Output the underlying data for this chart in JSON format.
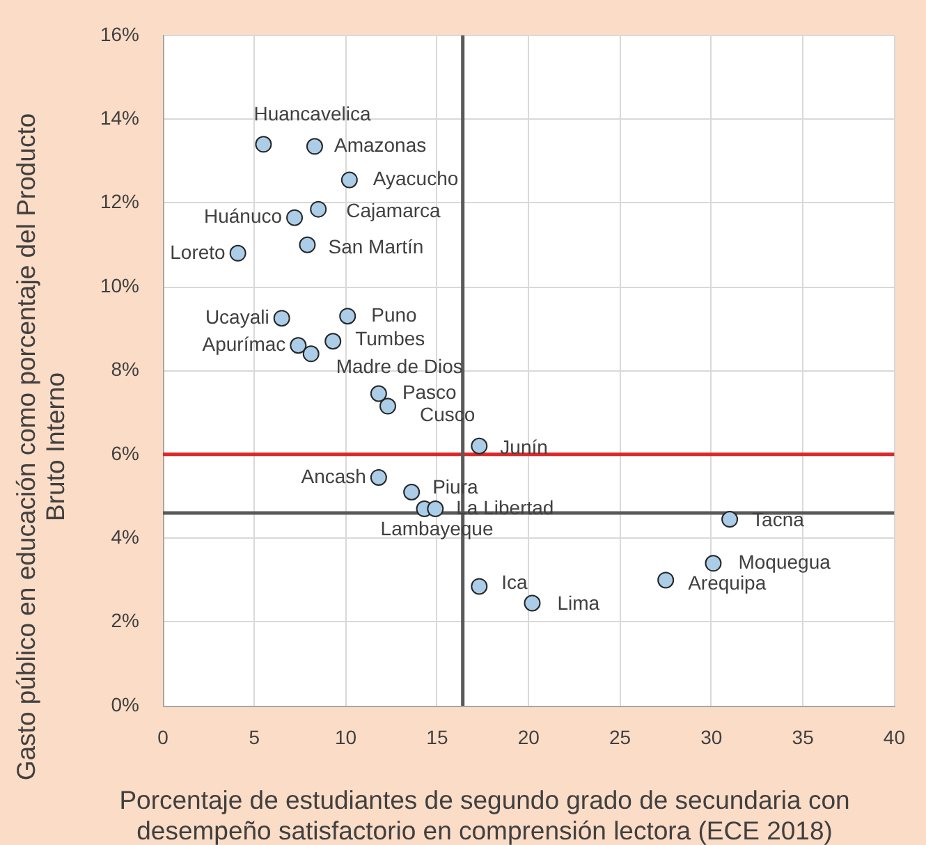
{
  "chart_data": {
    "type": "scatter",
    "xlabel": "Porcentaje de estudiantes de segundo grado de secundaria con desempeño satisfactorio en comprensión lectora (ECE 2018)",
    "ylabel": "Gasto público en educación como porcentaje del Producto Bruto Interno",
    "x": [
      5.5,
      8.3,
      10.2,
      7.2,
      8.5,
      4.1,
      7.9,
      6.5,
      10.1,
      9.3,
      7.4,
      8.1,
      11.8,
      12.3,
      17.3,
      11.8,
      13.6,
      14.3,
      14.9,
      31.0,
      30.1,
      27.5,
      17.3,
      20.2
    ],
    "values": [
      13.4,
      13.35,
      12.55,
      11.65,
      11.85,
      10.8,
      11.0,
      9.25,
      9.3,
      8.7,
      8.6,
      8.4,
      7.45,
      7.15,
      6.2,
      5.45,
      5.1,
      4.7,
      4.7,
      4.45,
      3.4,
      3.0,
      2.85,
      2.45
    ],
    "color": "#abcde8",
    "marker": "circle",
    "xlim": [
      0,
      40
    ],
    "xticks": [
      0,
      5,
      10,
      15,
      20,
      25,
      30,
      35,
      40
    ],
    "ylim": [
      0,
      16
    ],
    "yticks": [
      {
        "value": 0,
        "label": "0%"
      },
      {
        "value": 2,
        "label": "2%"
      },
      {
        "value": 4,
        "label": "4%"
      },
      {
        "value": 6,
        "label": "6%"
      },
      {
        "value": 8,
        "label": "8%"
      },
      {
        "value": 10,
        "label": "10%"
      },
      {
        "value": 12,
        "label": "12%"
      },
      {
        "value": 14,
        "label": "14%"
      },
      {
        "value": 16,
        "label": "16%"
      }
    ],
    "grid": true,
    "ref_lines": [
      {
        "axis": "y",
        "value": 6,
        "color": "#dc2828"
      },
      {
        "axis": "y",
        "value": 4.6,
        "color": "#595959"
      },
      {
        "axis": "x",
        "value": 16.4,
        "color": "#595959"
      }
    ],
    "annotations": [
      {
        "text": "Huancavelica",
        "x": 5.5,
        "y": 13.4
      },
      {
        "text": "Amazonas",
        "x": 8.3,
        "y": 13.35
      },
      {
        "text": "Ayacucho",
        "x": 10.2,
        "y": 12.55
      },
      {
        "text": "Huánuco",
        "x": 7.2,
        "y": 11.65
      },
      {
        "text": "Cajamarca",
        "x": 8.5,
        "y": 11.85
      },
      {
        "text": "Loreto",
        "x": 4.1,
        "y": 10.8
      },
      {
        "text": "San Martín",
        "x": 7.9,
        "y": 11.0
      },
      {
        "text": "Ucayali",
        "x": 6.5,
        "y": 9.25
      },
      {
        "text": "Puno",
        "x": 10.1,
        "y": 9.3
      },
      {
        "text": "Tumbes",
        "x": 9.3,
        "y": 8.7
      },
      {
        "text": "Apurímac",
        "x": 7.4,
        "y": 8.6
      },
      {
        "text": "Madre de Dios",
        "x": 8.1,
        "y": 8.4
      },
      {
        "text": "Pasco",
        "x": 11.8,
        "y": 7.45
      },
      {
        "text": "Cusco",
        "x": 12.3,
        "y": 7.15
      },
      {
        "text": "Junín",
        "x": 17.3,
        "y": 6.2
      },
      {
        "text": "Ancash",
        "x": 11.8,
        "y": 5.45
      },
      {
        "text": "Piura",
        "x": 13.6,
        "y": 5.1
      },
      {
        "text": "Lambayeque",
        "x": 14.3,
        "y": 4.7
      },
      {
        "text": "La Libertad",
        "x": 14.9,
        "y": 4.7
      },
      {
        "text": "Tacna",
        "x": 31.0,
        "y": 4.45
      },
      {
        "text": "Moquegua",
        "x": 30.1,
        "y": 3.4
      },
      {
        "text": "Arequipa",
        "x": 27.5,
        "y": 3.0
      },
      {
        "text": "Ica",
        "x": 17.3,
        "y": 2.85
      },
      {
        "text": "Lima",
        "x": 20.2,
        "y": 2.45
      }
    ]
  }
}
